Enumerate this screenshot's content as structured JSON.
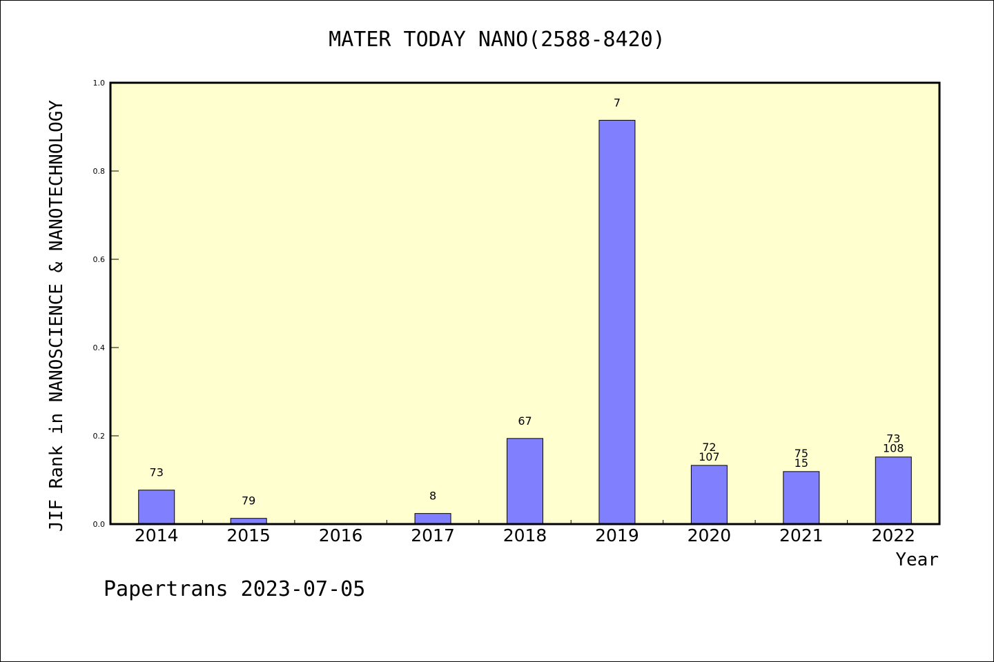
{
  "chart_data": {
    "type": "bar",
    "title": "MATER TODAY NANO(2588-8420)",
    "xlabel": "Year",
    "ylabel": "JIF Rank in NANOSCIENCE & NANOTECHNOLOGY",
    "categories": [
      "2014",
      "2015",
      "2016",
      "2017",
      "2018",
      "2019",
      "2020",
      "2021",
      "2022"
    ],
    "values": [
      0.077,
      0.013,
      0,
      0.024,
      0.194,
      0.915,
      0.133,
      0.119,
      0.152
    ],
    "bar_labels": [
      [
        "73"
      ],
      [
        "79"
      ],
      [],
      [
        "8"
      ],
      [
        "67"
      ],
      [
        "7"
      ],
      [
        "72",
        "107"
      ],
      [
        "75",
        "15"
      ],
      [
        "73",
        "108"
      ]
    ],
    "ylim": [
      0,
      1.0
    ],
    "yticks": [
      "0.0",
      "0.2",
      "0.4",
      "0.6",
      "0.8",
      "1.0"
    ],
    "ytick_values": [
      0,
      0.2,
      0.4,
      0.6,
      0.8,
      1.0
    ],
    "grid": false,
    "legend": "none",
    "colors": {
      "bar_fill": "#8080ff",
      "plot_background": "#ffffd0",
      "axis": "#000000"
    }
  },
  "footer": {
    "text": "Papertrans 2023-07-05"
  }
}
